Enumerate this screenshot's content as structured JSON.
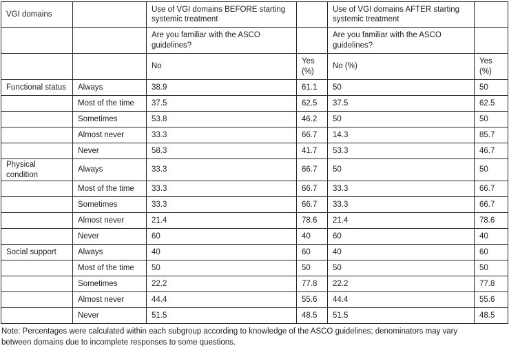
{
  "table": {
    "corner_label": "VGI domains",
    "header": {
      "before_title": "Use of VGI domains BEFORE starting systemic treatment",
      "after_title": "Use of VGI domains AFTER starting systemic treatment",
      "before_question": "Are you familiar with the ASCO guidelines?",
      "after_question": "Are you familiar with the ASCO guidelines?",
      "before_no": "No",
      "before_yes": "Yes (%)",
      "after_no": "No (%)",
      "after_yes": "Yes (%)"
    },
    "groups": [
      {
        "domain": "Functional status",
        "rows": [
          {
            "frequency": "Always",
            "values": [
              "38.9",
              "61.1",
              "50",
              "50"
            ]
          },
          {
            "frequency": "Most of the time",
            "values": [
              "37.5",
              "62.5",
              "37.5",
              "62.5"
            ]
          },
          {
            "frequency": "Sometimes",
            "values": [
              "53.8",
              "46.2",
              "50",
              "50"
            ]
          },
          {
            "frequency": "Almost never",
            "values": [
              "33.3",
              "66.7",
              "14.3",
              "85.7"
            ]
          },
          {
            "frequency": "Never",
            "values": [
              "58.3",
              "41.7",
              "53.3",
              "46.7"
            ]
          }
        ]
      },
      {
        "domain": "Physical condition",
        "rows": [
          {
            "frequency": "Always",
            "values": [
              "33.3",
              "66.7",
              "50",
              "50"
            ]
          },
          {
            "frequency": "Most of the time",
            "values": [
              "33.3",
              "66.7",
              "33.3",
              "66.7"
            ]
          },
          {
            "frequency": "Sometimes",
            "values": [
              "33.3",
              "66.7",
              "33.3",
              "66.7"
            ]
          },
          {
            "frequency": "Almost never",
            "values": [
              "21.4",
              "78.6",
              "21.4",
              "78.6"
            ]
          },
          {
            "frequency": "Never",
            "values": [
              "60",
              "40",
              "60",
              "40"
            ]
          }
        ]
      },
      {
        "domain": "Social support",
        "rows": [
          {
            "frequency": "Always",
            "values": [
              "40",
              "60",
              "40",
              "60"
            ]
          },
          {
            "frequency": "Most of the time",
            "values": [
              "50",
              "50",
              "50",
              "50"
            ]
          },
          {
            "frequency": "Sometimes",
            "values": [
              "22.2",
              "77.8",
              "22.2",
              "77.8"
            ]
          },
          {
            "frequency": "Almost never",
            "values": [
              "44.4",
              "55.6",
              "44.4",
              "55.6"
            ]
          },
          {
            "frequency": "Never",
            "values": [
              "51.5",
              "48.5",
              "51.5",
              "48.5"
            ]
          }
        ]
      }
    ]
  },
  "note": {
    "line1": "Note: Percentages were calculated within each subgroup according to knowledge of the ASCO guidelines; denominators may vary",
    "line2": "between domains due to incomplete responses to some questions."
  },
  "colors": {
    "background": "#ffffff",
    "text": "#212121",
    "border": "#262626"
  }
}
